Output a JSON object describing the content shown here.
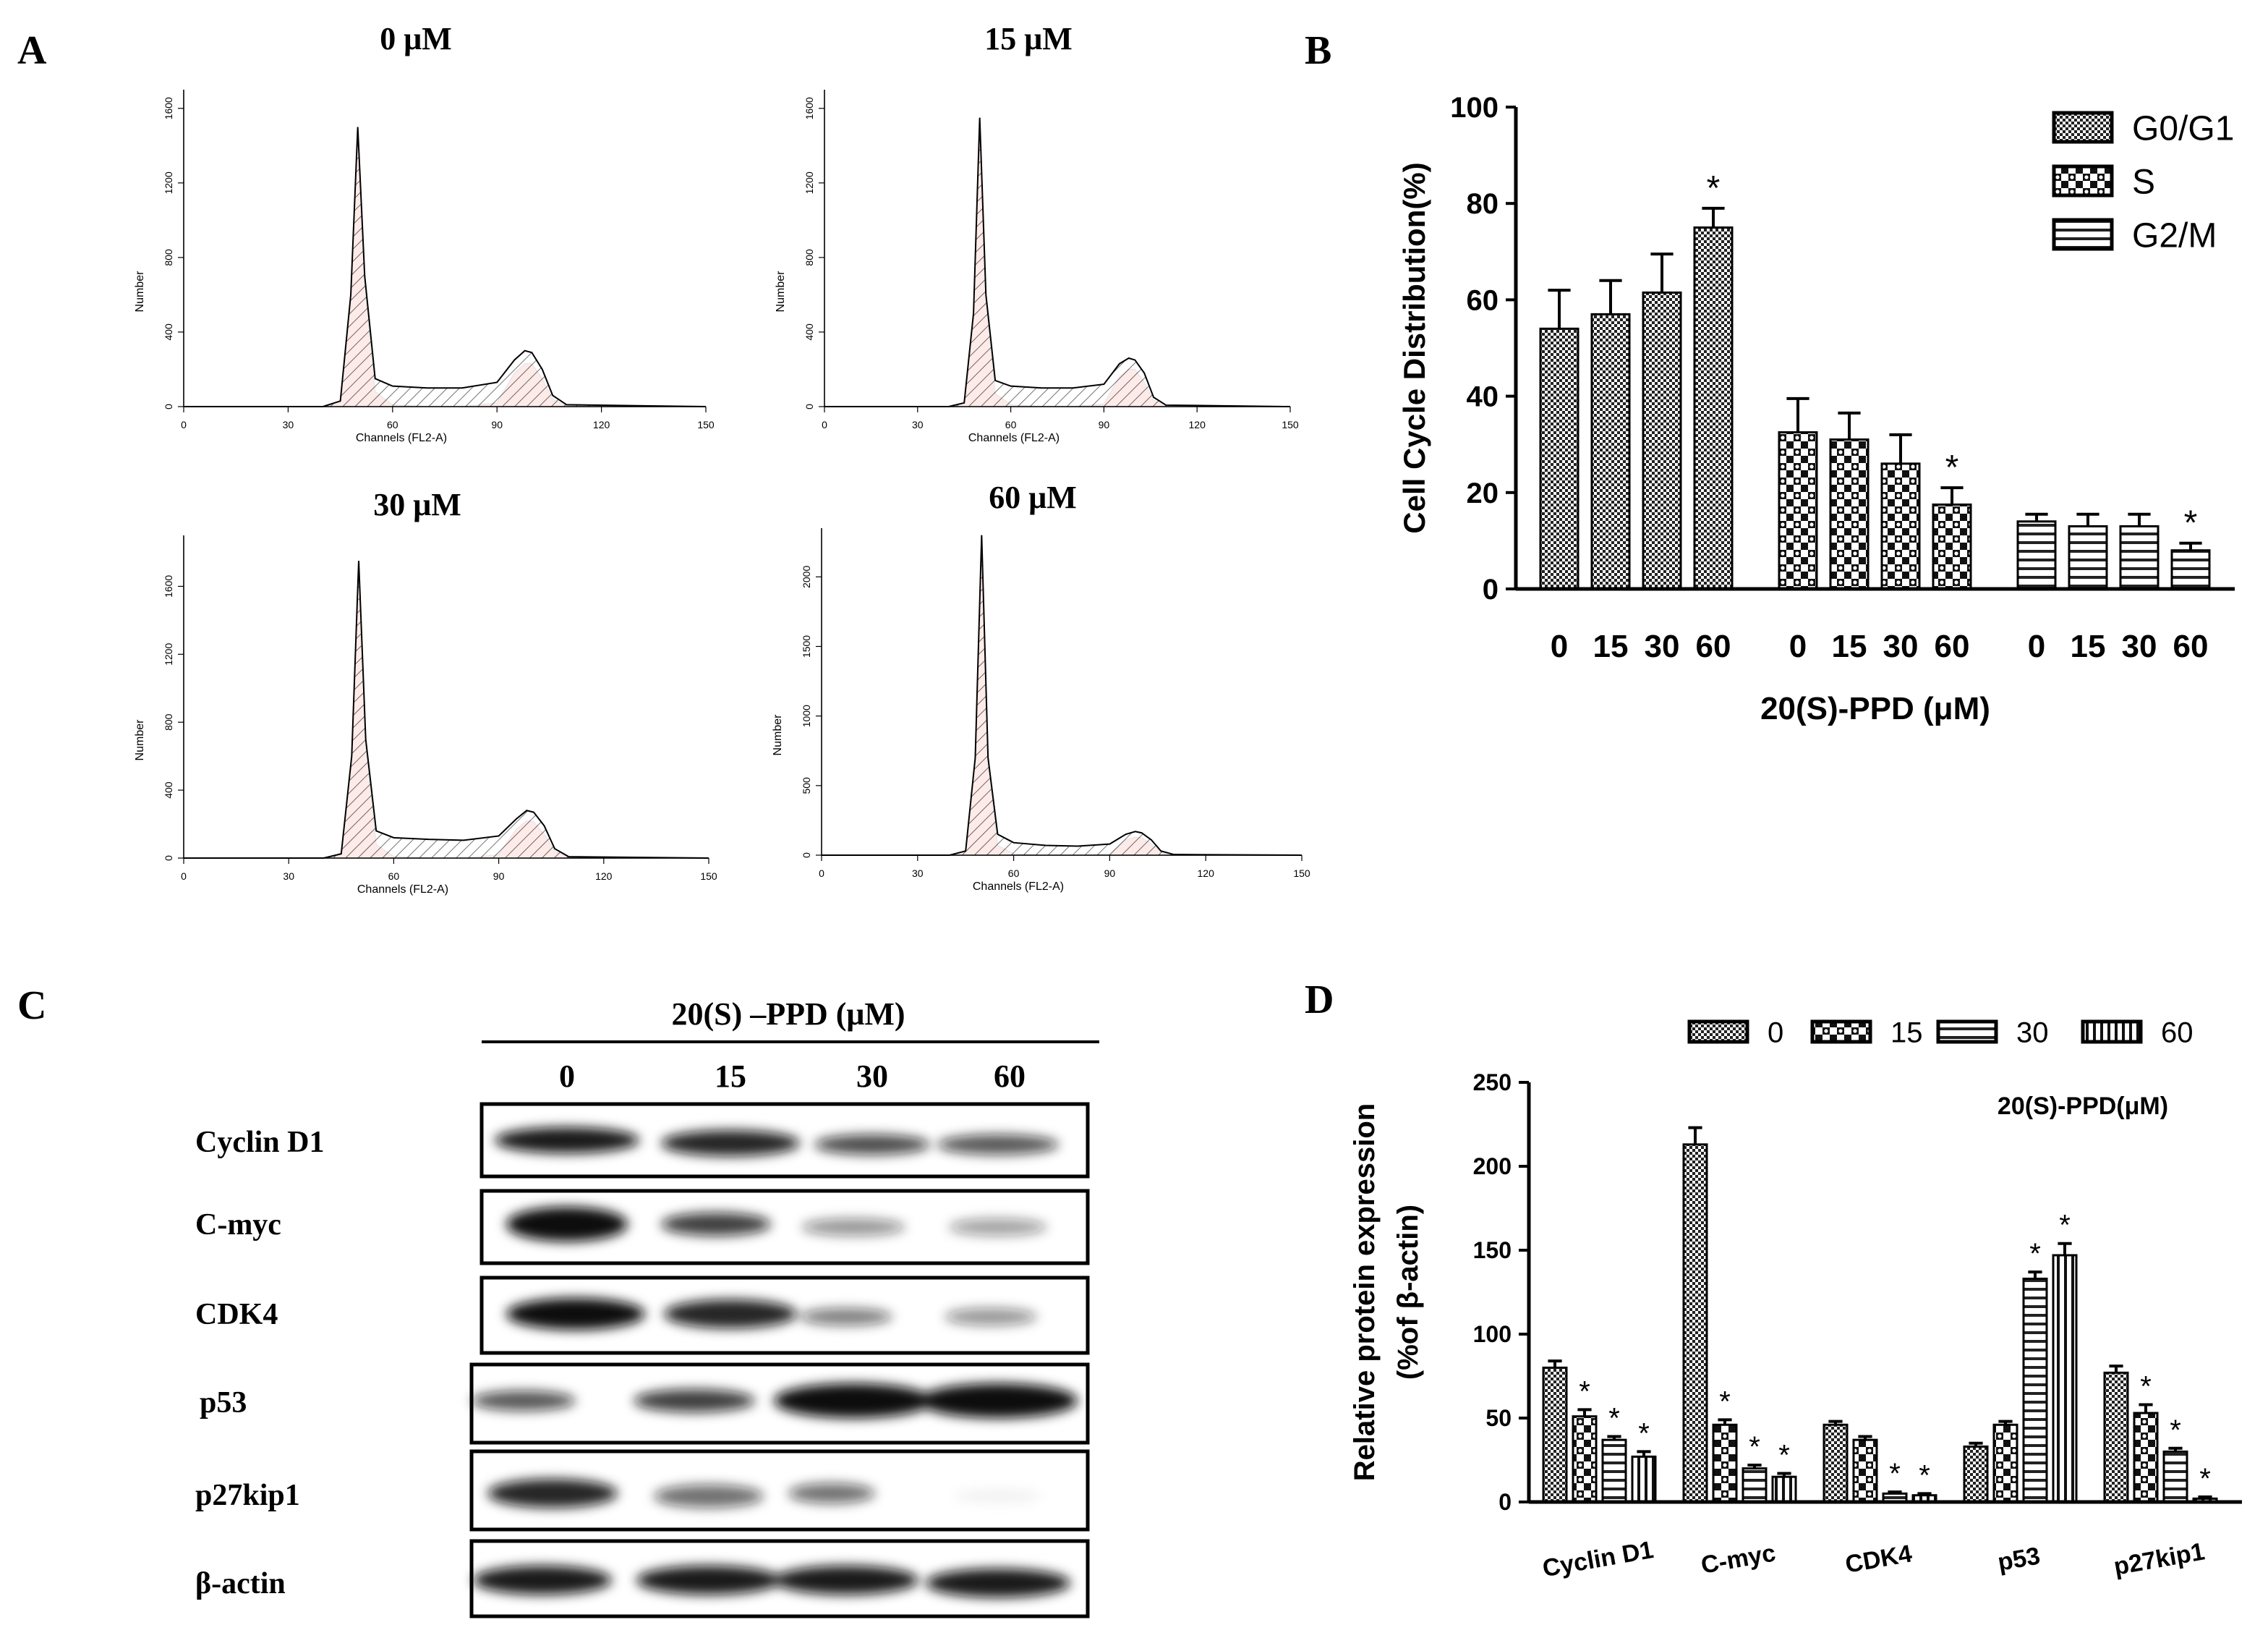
{
  "chart_data": [
    {
      "type": "area",
      "panel": "A",
      "title": "0 μM",
      "xlabel": "Channels (FL2-A)",
      "ylabel": "Number",
      "x": [
        0,
        40,
        45,
        48,
        50,
        52,
        55,
        60,
        70,
        80,
        90,
        95,
        98,
        100,
        103,
        106,
        110,
        150
      ],
      "series": [
        {
          "color": "#000000",
          "fill": "none",
          "values": [
            0,
            0,
            30,
            600,
            1500,
            700,
            150,
            110,
            100,
            100,
            130,
            250,
            300,
            290,
            200,
            60,
            10,
            0
          ]
        },
        {
          "color": "#e8311a",
          "fill": "solid",
          "values": [
            0,
            0,
            30,
            580,
            1480,
            650,
            80,
            10,
            0,
            0,
            20,
            180,
            230,
            230,
            150,
            40,
            5,
            0
          ]
        }
      ],
      "xlim": [
        0,
        150
      ],
      "xticks": [
        0,
        30,
        60,
        90,
        120,
        150
      ],
      "ylim": [
        0,
        1700
      ],
      "yticks": [
        0,
        400,
        800,
        1200,
        1600
      ]
    },
    {
      "type": "area",
      "title": "15 μM",
      "xlabel": "Channels (FL2-A)",
      "ylabel": "Number",
      "x": [
        0,
        40,
        45,
        48,
        50,
        52,
        55,
        60,
        70,
        80,
        90,
        95,
        98,
        100,
        103,
        106,
        110,
        150
      ],
      "series": [
        {
          "color": "#000000",
          "fill": "none",
          "values": [
            0,
            0,
            20,
            500,
            1550,
            600,
            140,
            110,
            100,
            100,
            120,
            230,
            260,
            250,
            180,
            50,
            8,
            0
          ]
        },
        {
          "color": "#e8311a",
          "fill": "solid",
          "values": [
            0,
            0,
            20,
            480,
            1530,
            560,
            70,
            10,
            0,
            0,
            15,
            160,
            200,
            200,
            130,
            35,
            4,
            0
          ]
        }
      ],
      "xlim": [
        0,
        150
      ],
      "xticks": [
        0,
        30,
        60,
        90,
        120,
        150
      ],
      "ylim": [
        0,
        1700
      ],
      "yticks": [
        0,
        400,
        800,
        1200,
        1600
      ]
    },
    {
      "type": "area",
      "title": "30 μM",
      "xlabel": "Channels (FL2-A)",
      "ylabel": "Number",
      "x": [
        0,
        40,
        45,
        48,
        50,
        52,
        55,
        60,
        70,
        80,
        90,
        95,
        98,
        100,
        103,
        106,
        110,
        150
      ],
      "series": [
        {
          "color": "#000000",
          "fill": "none",
          "values": [
            0,
            0,
            25,
            600,
            1750,
            700,
            160,
            120,
            110,
            105,
            130,
            230,
            280,
            270,
            190,
            55,
            8,
            0
          ]
        },
        {
          "color": "#e8311a",
          "fill": "solid",
          "values": [
            0,
            0,
            25,
            580,
            1730,
            650,
            80,
            10,
            0,
            0,
            20,
            170,
            220,
            215,
            140,
            40,
            4,
            0
          ]
        }
      ],
      "xlim": [
        0,
        150
      ],
      "xticks": [
        0,
        30,
        60,
        90,
        120,
        150
      ],
      "ylim": [
        0,
        1900
      ],
      "yticks": [
        0,
        400,
        800,
        1200,
        1600
      ]
    },
    {
      "type": "area",
      "title": "60 μM",
      "xlabel": "Channels (FL2-A)",
      "ylabel": "Number",
      "x": [
        0,
        40,
        45,
        48,
        50,
        52,
        55,
        60,
        70,
        80,
        90,
        95,
        98,
        100,
        103,
        106,
        110,
        150
      ],
      "series": [
        {
          "color": "#000000",
          "fill": "none",
          "values": [
            0,
            0,
            30,
            700,
            2300,
            700,
            150,
            90,
            70,
            65,
            80,
            150,
            170,
            160,
            110,
            30,
            5,
            0
          ]
        },
        {
          "color": "#e8311a",
          "fill": "solid",
          "values": [
            0,
            0,
            30,
            680,
            2280,
            650,
            70,
            10,
            0,
            0,
            10,
            110,
            130,
            125,
            80,
            20,
            3,
            0
          ]
        }
      ],
      "xlim": [
        0,
        150
      ],
      "xticks": [
        0,
        30,
        60,
        90,
        120,
        150
      ],
      "ylim": [
        0,
        2350
      ],
      "yticks": [
        0,
        500,
        1000,
        1500,
        2000
      ]
    },
    {
      "type": "bar",
      "panel": "B",
      "group_by": "series",
      "ylabel": "Cell Cycle Distribution(%)",
      "xlabel": "20(S)-PPD (μM)",
      "categories": [
        "0",
        "15",
        "30",
        "60"
      ],
      "series": [
        {
          "name": "G0/G1",
          "pattern": "checker",
          "values": [
            54,
            57,
            61.5,
            75
          ],
          "errors": [
            8,
            7,
            8,
            4
          ],
          "significance": [
            null,
            null,
            null,
            "*"
          ]
        },
        {
          "name": "S",
          "pattern": "bigchecker",
          "values": [
            32.5,
            31,
            26,
            17.5
          ],
          "errors": [
            7,
            5.5,
            6,
            3.5
          ],
          "significance": [
            null,
            null,
            null,
            "*"
          ]
        },
        {
          "name": "G2/M",
          "pattern": "hstripes",
          "values": [
            14,
            13,
            13,
            8
          ],
          "errors": [
            1.5,
            2.5,
            2.5,
            1.5
          ],
          "significance": [
            null,
            null,
            null,
            "*"
          ]
        }
      ],
      "ylim": [
        0,
        100
      ],
      "yticks": [
        0,
        20,
        40,
        60,
        80,
        100
      ],
      "legend": "top-right"
    },
    {
      "type": "bar",
      "panel": "D",
      "group_by": "category",
      "ylabel": [
        "Relative protein expression",
        "(%of β-actin)"
      ],
      "annotation": "20(S)-PPD(μM)",
      "categories": [
        "Cyclin D1",
        "C-myc",
        "CDK4",
        "p53",
        "p27kip1"
      ],
      "series": [
        {
          "name": "0",
          "pattern": "checker",
          "values": [
            80,
            213,
            46,
            33,
            77
          ],
          "errors": [
            4,
            10,
            2,
            2,
            4
          ],
          "significance": [
            null,
            null,
            null,
            null,
            null
          ]
        },
        {
          "name": "15",
          "pattern": "bigchecker",
          "values": [
            51,
            46,
            37,
            46,
            53
          ],
          "errors": [
            4,
            3,
            2,
            2,
            5
          ],
          "significance": [
            "*",
            "*",
            null,
            null,
            "*"
          ]
        },
        {
          "name": "30",
          "pattern": "hstripes",
          "values": [
            37,
            20,
            5,
            133,
            30
          ],
          "errors": [
            2,
            2,
            1,
            4,
            2
          ],
          "significance": [
            "*",
            "*",
            "*",
            "*",
            "*"
          ]
        },
        {
          "name": "60",
          "pattern": "vstripes",
          "values": [
            27,
            15,
            4,
            147,
            2
          ],
          "errors": [
            3,
            2,
            1,
            7,
            1
          ],
          "significance": [
            "*",
            "*",
            "*",
            "*",
            "*"
          ]
        }
      ],
      "ylim": [
        0,
        250
      ],
      "yticks": [
        0,
        50,
        100,
        150,
        200,
        250
      ],
      "legend": "top"
    }
  ],
  "blot": {
    "panel": "C",
    "title": "20(S) –PPD (μM)",
    "lanes": [
      "0",
      "15",
      "30",
      "60"
    ],
    "rows": [
      "Cyclin D1",
      "C-myc",
      "CDK4",
      "p53",
      "p27kip1",
      "β-actin"
    ]
  }
}
